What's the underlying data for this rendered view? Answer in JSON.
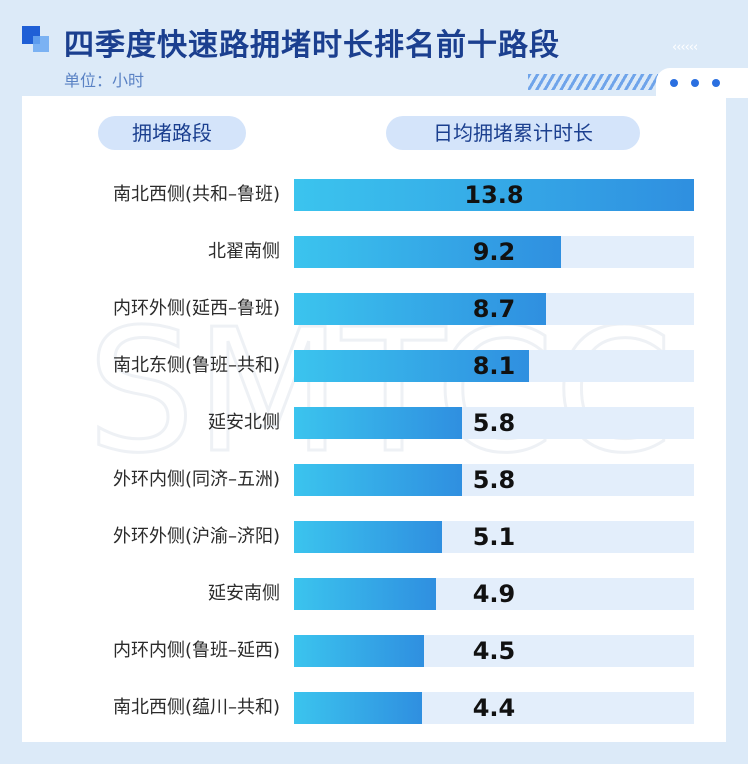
{
  "header": {
    "title": "四季度快速路拥堵时长排名前十路段",
    "unit": "单位：小时",
    "chevrons": "‹‹‹‹‹‹"
  },
  "columns": {
    "segment": "拥堵路段",
    "duration": "日均拥堵累计时长"
  },
  "watermark": "SMTCC",
  "colors": {
    "bar_start": "#3bc4ee",
    "bar_end": "#2f8fe0",
    "track": "#e3eefb",
    "title": "#1b3f8f"
  },
  "chart_data": {
    "type": "bar",
    "orientation": "horizontal",
    "categories": [
      "南北西侧(共和–鲁班)",
      "北翟南侧",
      "内环外侧(延西–鲁班)",
      "南北东侧(鲁班–共和)",
      "延安北侧",
      "外环内侧(同济–五洲)",
      "外环外侧(沪渝–济阳)",
      "延安南侧",
      "内环内侧(鲁班–延西)",
      "南北西侧(蕴川–共和)"
    ],
    "values": [
      13.8,
      9.2,
      8.7,
      8.1,
      5.8,
      5.8,
      5.1,
      4.9,
      4.5,
      4.4
    ],
    "xlim": [
      0,
      13.8
    ],
    "grid": false,
    "legend": "none"
  }
}
